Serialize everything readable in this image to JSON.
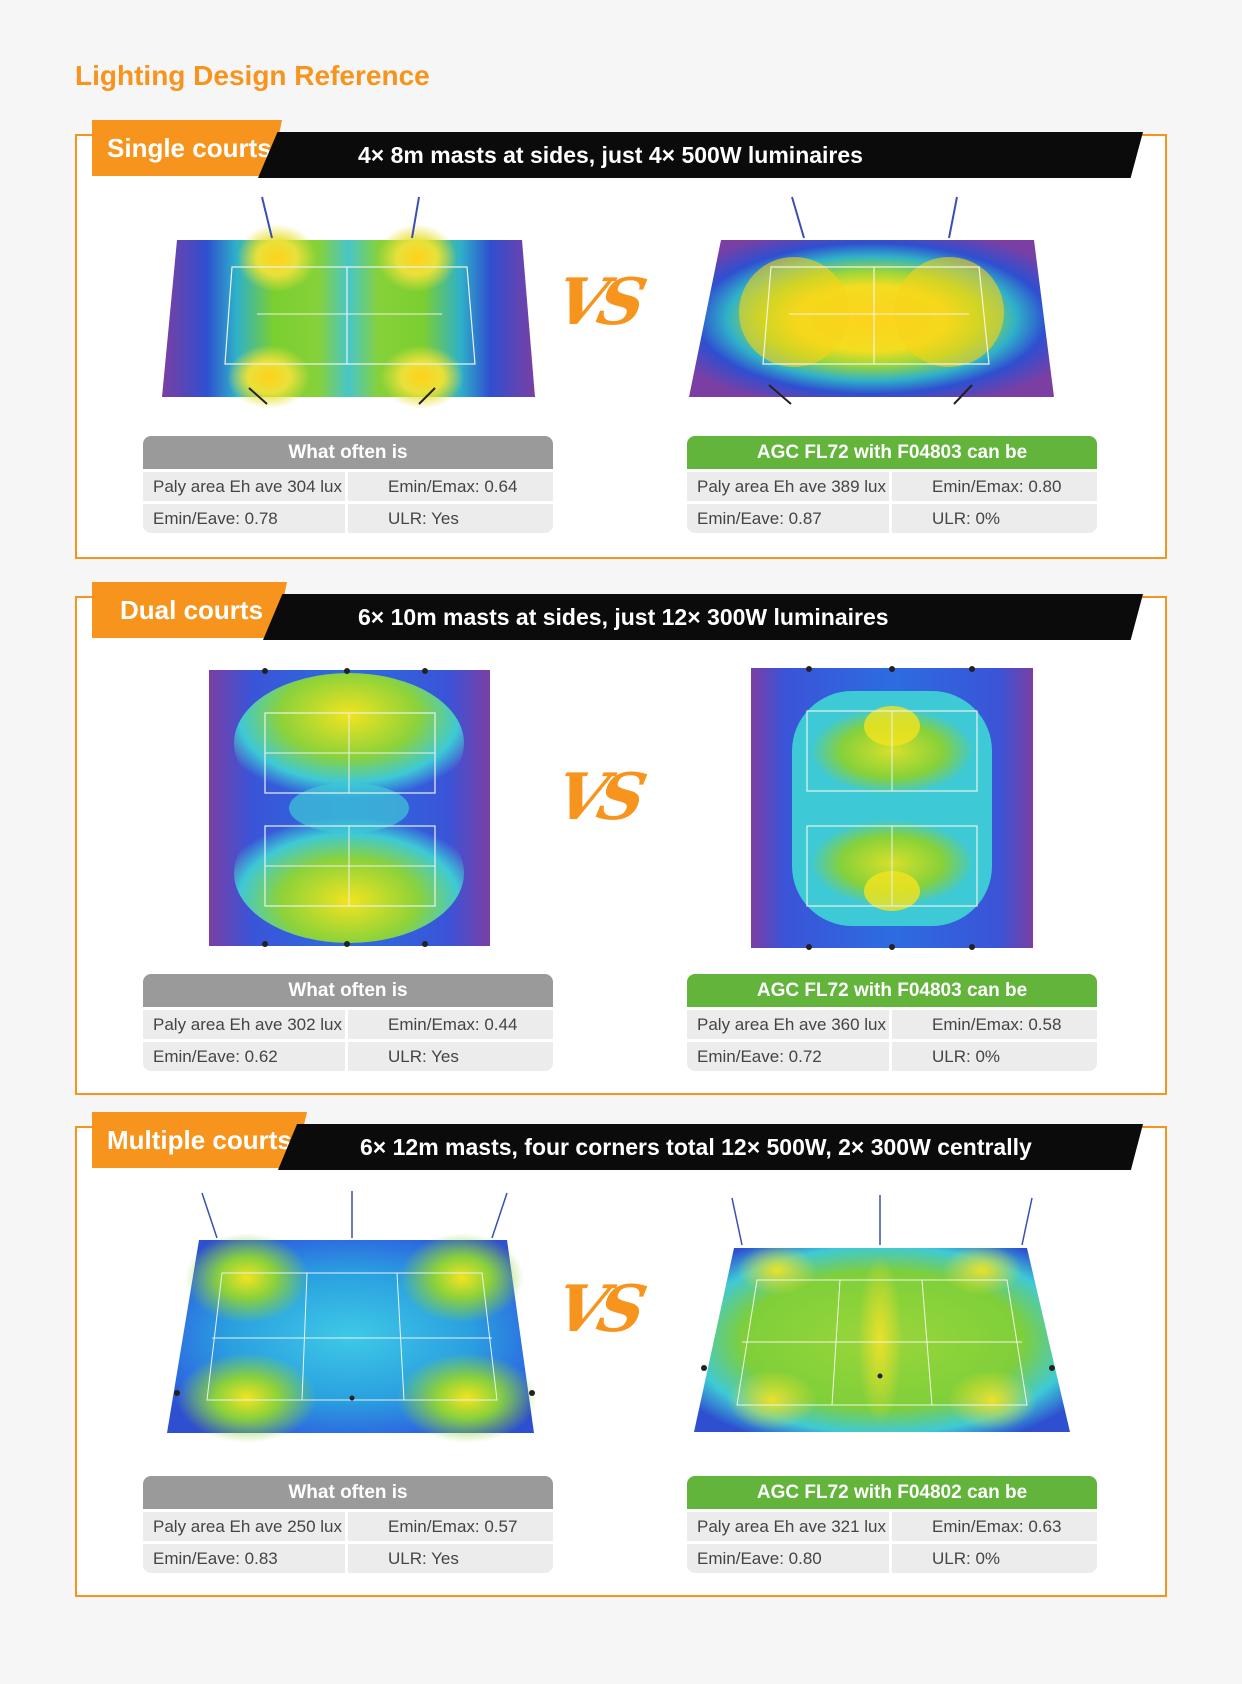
{
  "page": {
    "title": "Lighting Design Reference",
    "accent": "#f7941d",
    "green": "#62b43a",
    "gray": "#9a9a9a"
  },
  "vs_label": "VS",
  "sections": [
    {
      "tag": "Single courts",
      "heading": "4× 8m masts at sides, just 4× 500W luminaires",
      "left": {
        "header": "What often is",
        "cells": [
          "Paly area Eh ave 304 lux",
          "Emin/Emax: 0.64",
          "Emin/Eave: 0.78",
          "ULR: Yes"
        ]
      },
      "right": {
        "header": "AGC FL72 with F04803 can be",
        "cells": [
          "Paly area Eh ave 389 lux",
          "Emin/Emax: 0.80",
          "Emin/Eave: 0.87",
          "ULR: 0%"
        ]
      }
    },
    {
      "tag": "Dual courts",
      "heading": "6× 10m masts at sides, just 12× 300W luminaires",
      "left": {
        "header": "What often is",
        "cells": [
          "Paly area Eh ave 302 lux",
          "Emin/Emax: 0.44",
          "Emin/Eave: 0.62",
          "ULR: Yes"
        ]
      },
      "right": {
        "header": "AGC FL72 with F04803 can be",
        "cells": [
          "Paly area Eh ave 360 lux",
          "Emin/Emax: 0.58",
          "Emin/Eave: 0.72",
          "ULR: 0%"
        ]
      }
    },
    {
      "tag": "Multiple courts",
      "heading": "6× 12m masts, four corners total 12× 500W, 2× 300W centrally",
      "left": {
        "header": "What often is",
        "cells": [
          "Paly area Eh ave 250 lux",
          "Emin/Emax: 0.57",
          "Emin/Eave: 0.83",
          "ULR: Yes"
        ]
      },
      "right": {
        "header": "AGC FL72 with F04802 can be",
        "cells": [
          "Paly area Eh ave 321 lux",
          "Emin/Emax: 0.63",
          "Emin/Eave: 0.80",
          "ULR: 0%"
        ]
      }
    }
  ]
}
